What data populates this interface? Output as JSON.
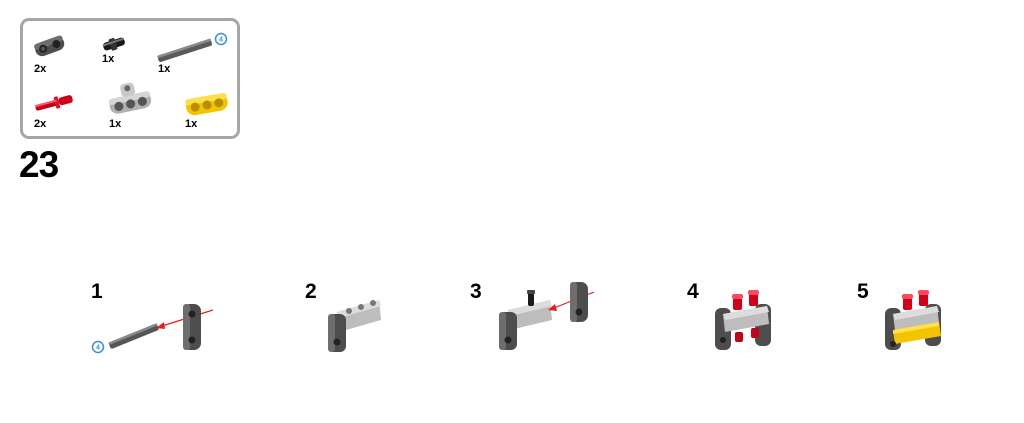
{
  "parts_list": {
    "items": [
      {
        "name": "connector",
        "qty": "2x",
        "color": "#5a5a5a"
      },
      {
        "name": "ball-pin",
        "qty": "1x",
        "color": "#1a1a1a"
      },
      {
        "name": "axle",
        "qty": "1x",
        "color": "#5f5f5f",
        "length": "4"
      },
      {
        "name": "red-axle-pin",
        "qty": "2x",
        "color": "#d0021b"
      },
      {
        "name": "gray-beam",
        "qty": "1x",
        "color": "#b8b8b8"
      },
      {
        "name": "yellow-beam",
        "qty": "1x",
        "color": "#ffd500"
      }
    ]
  },
  "step": {
    "number": "23"
  },
  "substeps": [
    {
      "label": "1",
      "badge": "4"
    },
    {
      "label": "2"
    },
    {
      "label": "3"
    },
    {
      "label": "4"
    },
    {
      "label": "5"
    }
  ],
  "colors": {
    "dark_gray": "#5a5a5a",
    "light_gray": "#bdbdbd",
    "red": "#d0021b",
    "yellow": "#ffd500",
    "arrow_red": "#e02020",
    "badge_blue": "#3a8fd9"
  }
}
